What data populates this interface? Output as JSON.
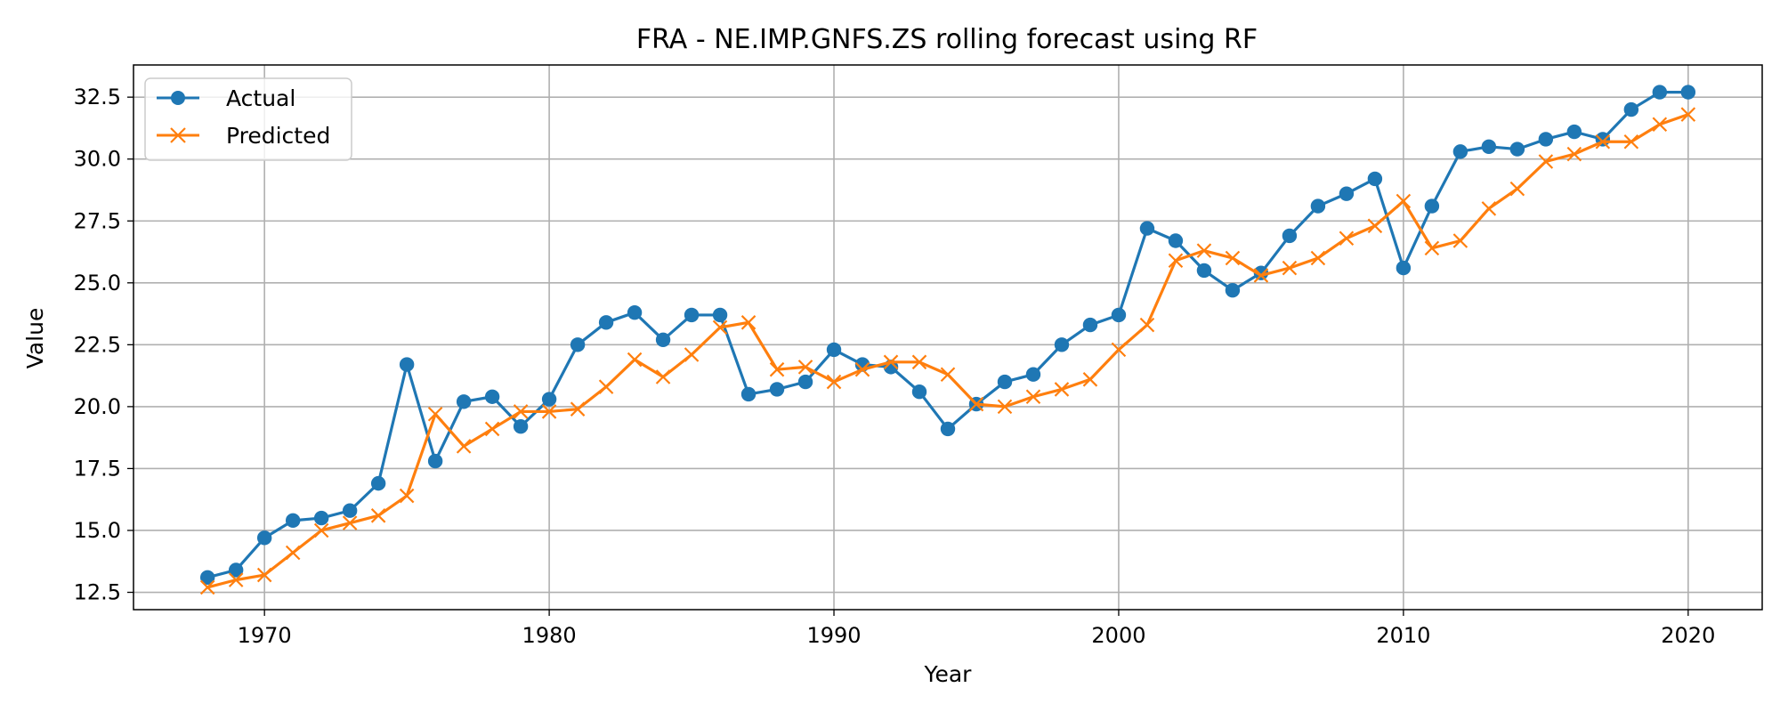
{
  "chart_data": {
    "type": "line",
    "title": "FRA - NE.IMP.GNFS.ZS rolling forecast using RF",
    "xlabel": "Year",
    "ylabel": "Value",
    "x": [
      1968,
      1969,
      1970,
      1971,
      1972,
      1973,
      1974,
      1975,
      1976,
      1977,
      1978,
      1979,
      1980,
      1981,
      1982,
      1983,
      1984,
      1985,
      1986,
      1987,
      1988,
      1989,
      1990,
      1991,
      1992,
      1993,
      1994,
      1995,
      1996,
      1997,
      1998,
      1999,
      2000,
      2001,
      2002,
      2003,
      2004,
      2005,
      2006,
      2007,
      2008,
      2009,
      2010,
      2011,
      2012,
      2013,
      2014,
      2015,
      2016,
      2017,
      2018,
      2019,
      2020
    ],
    "series": [
      {
        "name": "Actual",
        "color": "#1f77b4",
        "marker": "circle",
        "values": [
          13.1,
          13.4,
          14.7,
          15.4,
          15.5,
          15.8,
          16.9,
          21.7,
          17.8,
          20.2,
          20.4,
          19.2,
          20.3,
          22.5,
          23.4,
          23.8,
          22.7,
          23.7,
          23.7,
          20.5,
          20.7,
          21.0,
          22.3,
          21.7,
          21.6,
          20.6,
          19.1,
          20.1,
          21.0,
          21.3,
          22.5,
          23.3,
          23.7,
          27.2,
          26.7,
          25.5,
          24.7,
          25.4,
          26.9,
          28.1,
          28.6,
          29.2,
          25.6,
          28.1,
          30.3,
          30.5,
          30.4,
          30.8,
          31.1,
          30.8,
          32.0,
          32.7,
          32.7
        ]
      },
      {
        "name": "Predicted",
        "color": "#ff7f0e",
        "marker": "x",
        "values": [
          12.7,
          13.0,
          13.2,
          14.1,
          15.0,
          15.3,
          15.6,
          16.4,
          19.7,
          18.4,
          19.1,
          19.8,
          19.8,
          19.9,
          20.8,
          21.9,
          21.2,
          22.1,
          23.2,
          23.4,
          21.5,
          21.6,
          21.0,
          21.5,
          21.8,
          21.8,
          21.3,
          20.1,
          20.0,
          20.4,
          20.7,
          21.1,
          22.3,
          23.3,
          25.9,
          26.3,
          26.0,
          25.3,
          25.6,
          26.0,
          26.8,
          27.3,
          28.3,
          26.4,
          26.7,
          28.0,
          28.8,
          29.9,
          30.2,
          30.7,
          30.7,
          31.4,
          31.8
        ]
      }
    ],
    "xlim": [
      1965.4,
      2022.6
    ],
    "ylim": [
      11.8,
      33.8
    ],
    "xticks": [
      1970,
      1980,
      1990,
      2000,
      2010,
      2020
    ],
    "yticks": [
      12.5,
      15.0,
      17.5,
      20.0,
      22.5,
      25.0,
      27.5,
      30.0,
      32.5
    ],
    "grid": true,
    "legend_position": "top-left"
  }
}
